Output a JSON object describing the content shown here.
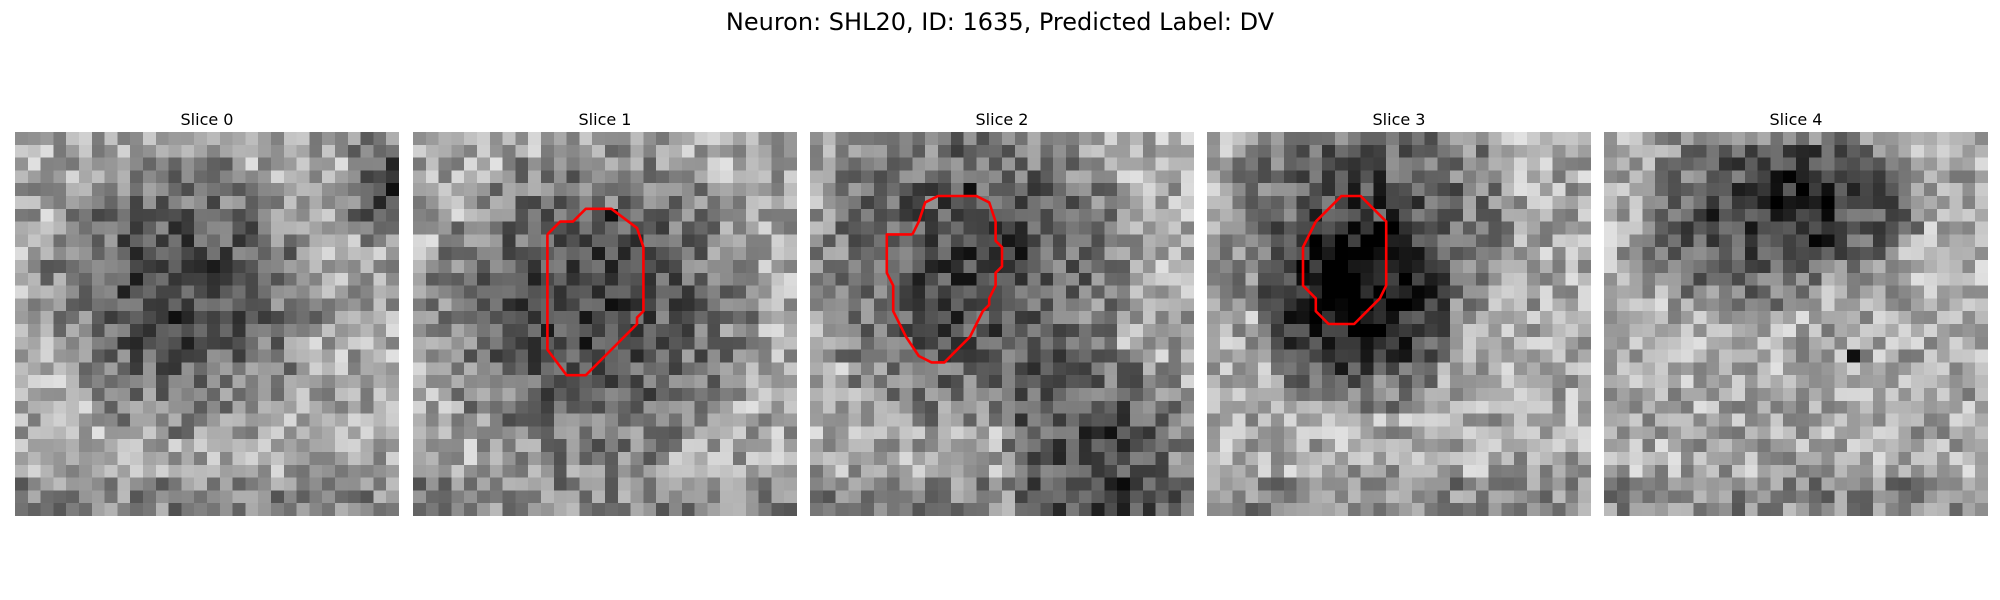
{
  "figure": {
    "title": "Neuron: SHL20, ID: 1635, Predicted Label: DV"
  },
  "contour_color": "#ff0000",
  "slices": [
    {
      "title": "Slice 0",
      "dark_centers": [
        [
          12,
          12.5,
          7
        ],
        [
          4,
          29.5,
          3
        ]
      ],
      "contour": [],
      "dark_spots": [
        [
          4,
          29
        ]
      ],
      "seed": 11
    },
    {
      "title": "Slice 1",
      "dark_centers": [
        [
          13.5,
          13.5,
          8
        ]
      ],
      "contour": [
        [
          10.5,
          8
        ],
        [
          11.5,
          7
        ],
        [
          12.5,
          7
        ],
        [
          13.5,
          6
        ],
        [
          15.5,
          6
        ],
        [
          17.5,
          7.5
        ],
        [
          18,
          9
        ],
        [
          18,
          14
        ],
        [
          17.5,
          14.5
        ],
        [
          17.5,
          15
        ],
        [
          15,
          17.5
        ],
        [
          13.5,
          19
        ],
        [
          12,
          19
        ],
        [
          10.5,
          17
        ],
        [
          10.5,
          8
        ]
      ],
      "dark_spots": [
        [
          13,
          15
        ],
        [
          6,
          15
        ]
      ],
      "seed": 23
    },
    {
      "title": "Slice 2",
      "dark_centers": [
        [
          10,
          12,
          8
        ],
        [
          24,
          22,
          5
        ]
      ],
      "contour": [
        [
          8,
          8
        ],
        [
          8.5,
          7
        ],
        [
          9,
          5.5
        ],
        [
          10,
          5
        ],
        [
          13,
          5
        ],
        [
          14,
          5.5
        ],
        [
          14.5,
          7
        ],
        [
          14.5,
          8.5
        ],
        [
          15,
          9
        ],
        [
          15,
          10.5
        ],
        [
          14.5,
          11
        ],
        [
          14.5,
          12
        ],
        [
          14,
          13
        ],
        [
          14,
          13.5
        ],
        [
          13.5,
          14
        ],
        [
          13,
          15
        ],
        [
          12.5,
          16
        ],
        [
          12,
          16.5
        ],
        [
          11.5,
          17
        ],
        [
          10.5,
          18
        ],
        [
          9.5,
          18
        ],
        [
          8.5,
          17.5
        ],
        [
          7.5,
          16
        ],
        [
          6.5,
          14
        ],
        [
          6.5,
          12
        ],
        [
          6,
          11
        ],
        [
          6,
          8
        ],
        [
          8,
          8
        ]
      ],
      "dark_spots": [
        [
          4,
          12
        ],
        [
          9,
          16
        ]
      ],
      "seed": 37
    },
    {
      "title": "Slice 3",
      "dark_centers": [
        [
          7,
          12,
          7
        ],
        [
          14,
          11,
          5
        ]
      ],
      "contour": [
        [
          8.5,
          7
        ],
        [
          9.5,
          6
        ],
        [
          10.5,
          5
        ],
        [
          12,
          5
        ],
        [
          14,
          7
        ],
        [
          14,
          12
        ],
        [
          13.5,
          13
        ],
        [
          12.5,
          14
        ],
        [
          11.5,
          15
        ],
        [
          9.5,
          15
        ],
        [
          8.5,
          14
        ],
        [
          8.5,
          13
        ],
        [
          7.5,
          12
        ],
        [
          7.5,
          9
        ],
        [
          8.5,
          7
        ]
      ],
      "dark_spots": [
        [
          5,
          13
        ]
      ],
      "seed": 51
    },
    {
      "title": "Slice 4",
      "dark_centers": [
        [
          6,
          10,
          5
        ],
        [
          5,
          18,
          4
        ]
      ],
      "contour": [],
      "dark_spots": [
        [
          17,
          19
        ],
        [
          4,
          17
        ]
      ],
      "seed": 73
    }
  ]
}
